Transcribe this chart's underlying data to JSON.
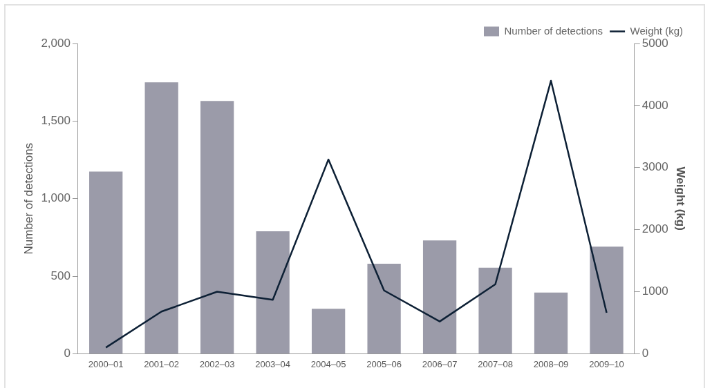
{
  "chart_data": {
    "type": "bar",
    "ylabel": "Number of detections",
    "y2label": "Weight (kg)",
    "categories": [
      "2000–01",
      "2001–02",
      "2002–03",
      "2003–04",
      "2004–05",
      "2005–06",
      "2006–07",
      "2007–08",
      "2008–09",
      "2009–10"
    ],
    "series": [
      {
        "name": "Number of detections",
        "color": "#9b9ba9",
        "values": [
          1175,
          1750,
          1630,
          790,
          290,
          580,
          730,
          555,
          395,
          690
        ]
      },
      {
        "name": "Weight (kg)",
        "type": "line",
        "axis": "y2",
        "color": "#0d2035",
        "values": [
          100,
          680,
          1000,
          870,
          3130,
          1020,
          520,
          1120,
          4400,
          660
        ]
      }
    ],
    "ylim": [
      0,
      2000
    ],
    "yticks": [
      0,
      {
        "value": 500,
        "label": "500"
      },
      {
        "value": 1000,
        "label": "1,000"
      },
      {
        "value": 1500,
        "label": "1,500"
      },
      {
        "value": 2000,
        "label": "2,000"
      }
    ],
    "y2lim": [
      0,
      5000
    ],
    "y2ticks": [
      0,
      1000,
      2000,
      3000,
      4000,
      5000
    ],
    "grid": false,
    "legend": "top right",
    "marker": "none"
  }
}
